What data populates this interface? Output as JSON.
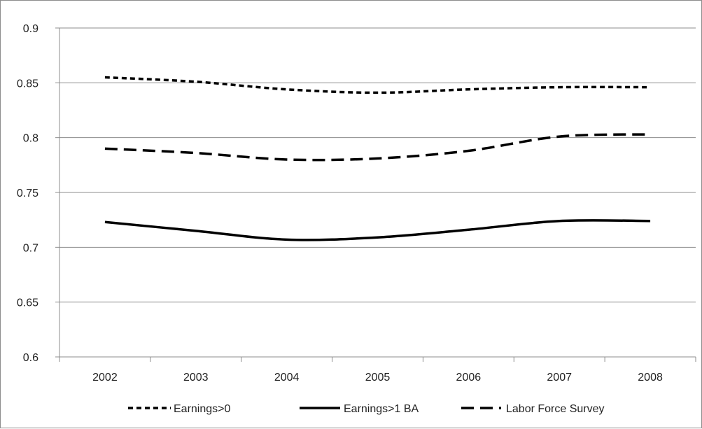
{
  "chart_data": {
    "type": "line",
    "categories": [
      "2002",
      "2003",
      "2004",
      "2005",
      "2006",
      "2007",
      "2008"
    ],
    "ylim": [
      0.6,
      0.9
    ],
    "yticks": [
      "0.6",
      "0.65",
      "0.7",
      "0.75",
      "0.8",
      "0.85",
      "0.9"
    ],
    "grid": true,
    "legend_position": "bottom",
    "series": [
      {
        "name": "Earnings>0",
        "values": [
          0.855,
          0.851,
          0.844,
          0.841,
          0.844,
          0.846,
          0.846
        ],
        "style": "short-dash",
        "color": "#000000"
      },
      {
        "name": "Earnings>1 BA",
        "values": [
          0.723,
          0.715,
          0.707,
          0.709,
          0.716,
          0.724,
          0.724
        ],
        "style": "solid",
        "color": "#000000"
      },
      {
        "name": "Labor Force Survey",
        "values": [
          0.79,
          0.786,
          0.78,
          0.781,
          0.788,
          0.801,
          0.803
        ],
        "style": "long-dash",
        "color": "#000000"
      }
    ]
  }
}
